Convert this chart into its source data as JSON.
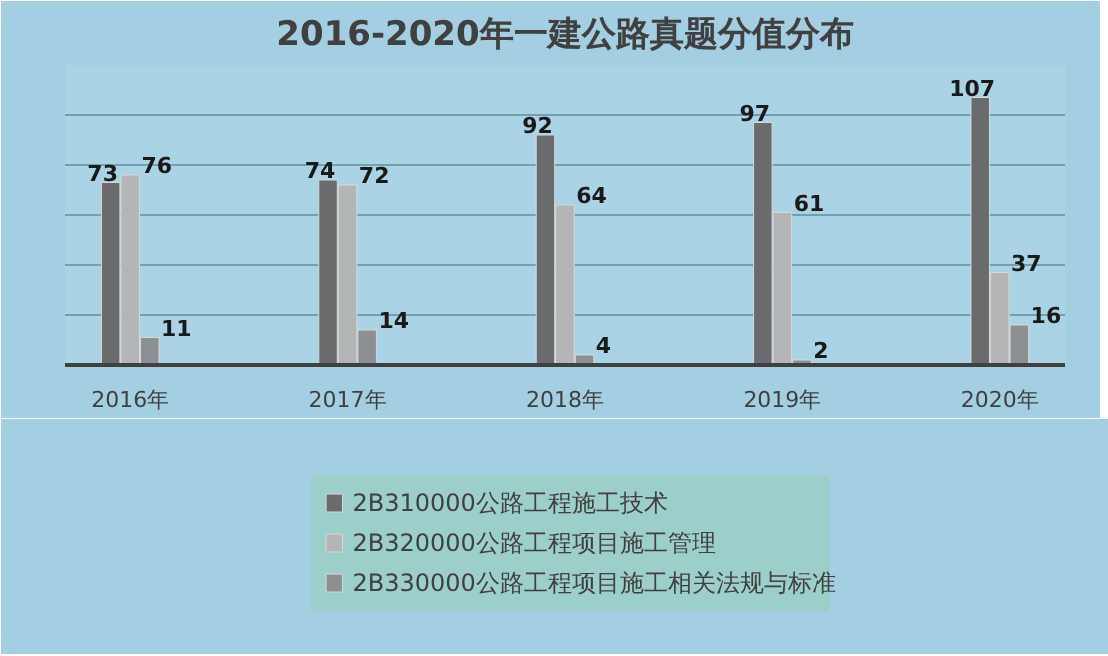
{
  "chart_data": {
    "type": "bar",
    "title": "2016-2020年一建公路真题分值分布",
    "categories": [
      "2016年",
      "2017年",
      "2018年",
      "2019年",
      "2020年"
    ],
    "series": [
      {
        "name": "2B310000公路工程施工技术",
        "color": "#696b6d",
        "values": [
          73,
          74,
          92,
          97,
          107
        ]
      },
      {
        "name": "2B320000公路工程项目施工管理",
        "color": "#b4b5b6",
        "values": [
          76,
          72,
          64,
          61,
          37
        ]
      },
      {
        "name": "2B330000公路工程项目施工相关法规与标准",
        "color": "#8d9092",
        "values": [
          11,
          14,
          4,
          2,
          16
        ]
      }
    ],
    "ylim": [
      0,
      120
    ],
    "yticks": [
      {
        "value": 0,
        "label": null
      },
      {
        "value": 20,
        "label": null
      },
      {
        "value": 40,
        "label": null
      },
      {
        "value": 60,
        "label": null
      },
      {
        "value": 80,
        "label": null
      },
      {
        "value": 100,
        "label": null
      },
      {
        "value": 120,
        "label": null
      }
    ],
    "tick_labels": "x",
    "grid": "y",
    "data_labels": true,
    "legend": "bottom"
  }
}
